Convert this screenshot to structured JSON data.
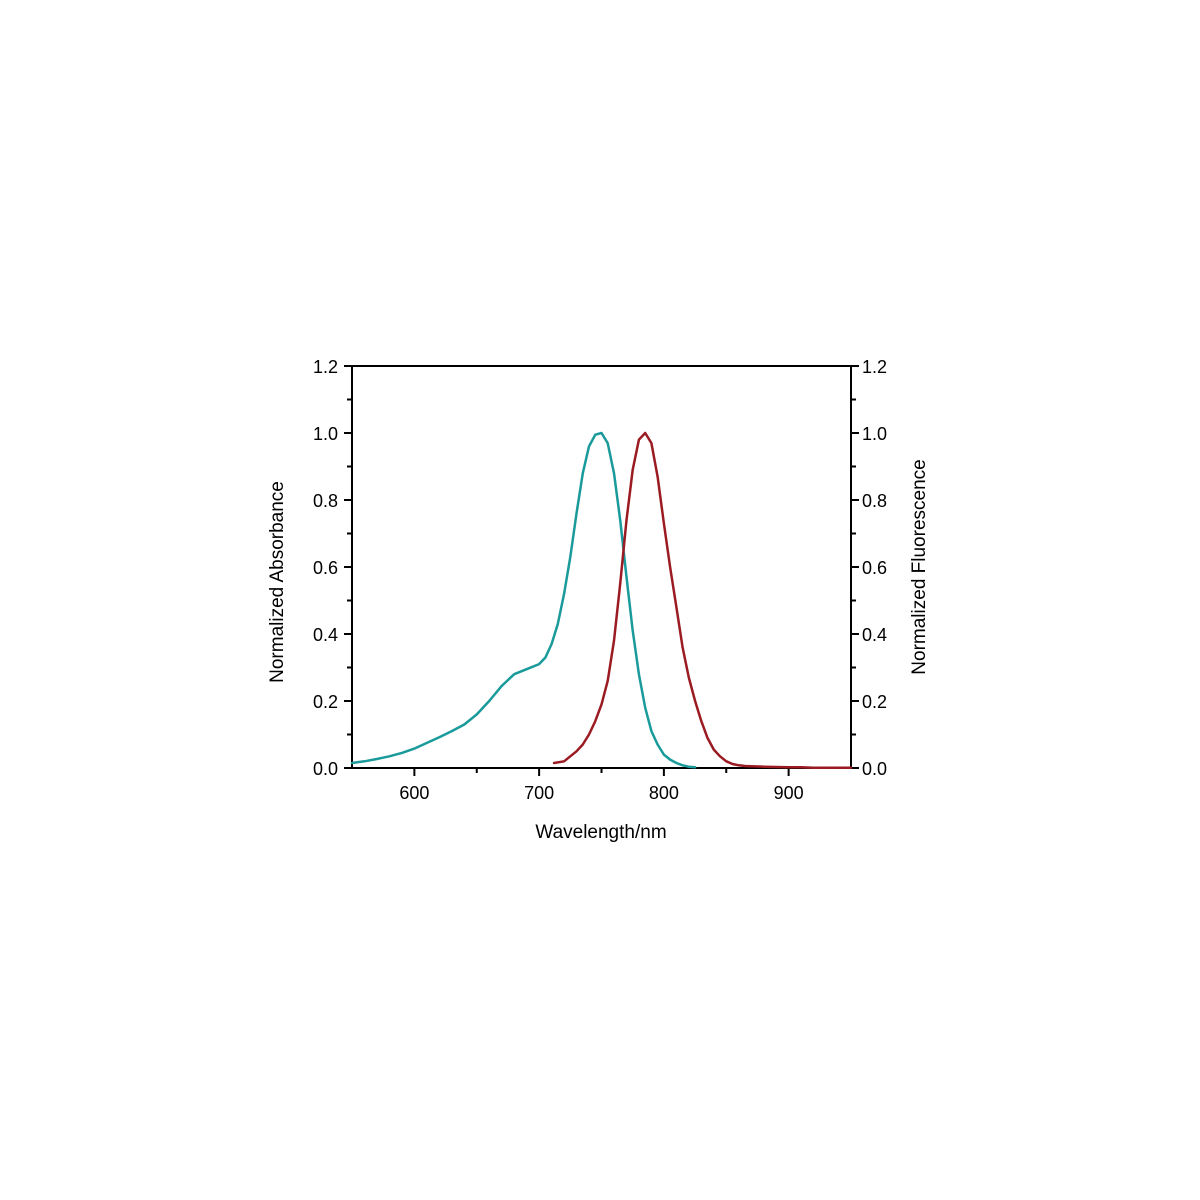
{
  "chart_data": {
    "type": "line",
    "xlabel": "Wavelength/nm",
    "ylabel_left": "Normalized Absorbance",
    "ylabel_right": "Normalized Fluorescence",
    "xlim": [
      550,
      950
    ],
    "ylim": [
      0,
      1.2
    ],
    "x_ticks": [
      600,
      700,
      800,
      900
    ],
    "y_ticks": [
      0.0,
      0.2,
      0.4,
      0.6,
      0.8,
      1.0,
      1.2
    ],
    "x_tick_labels": [
      "600",
      "700",
      "800",
      "900"
    ],
    "y_tick_labels": [
      "0.0",
      "0.2",
      "0.4",
      "0.6",
      "0.8",
      "1.0",
      "1.2"
    ],
    "grid": false,
    "legend": "none",
    "series": [
      {
        "color": "#1a9a9a",
        "axis": "left",
        "x": [
          550,
          560,
          570,
          580,
          590,
          600,
          610,
          620,
          630,
          640,
          650,
          660,
          670,
          680,
          690,
          700,
          705,
          710,
          715,
          720,
          725,
          730,
          735,
          740,
          745,
          750,
          755,
          760,
          765,
          770,
          775,
          780,
          785,
          790,
          795,
          800,
          805,
          810,
          815,
          820,
          825
        ],
        "y": [
          0.015,
          0.02,
          0.027,
          0.035,
          0.045,
          0.058,
          0.075,
          0.092,
          0.11,
          0.13,
          0.16,
          0.2,
          0.245,
          0.28,
          0.295,
          0.31,
          0.33,
          0.37,
          0.43,
          0.52,
          0.63,
          0.76,
          0.88,
          0.96,
          0.995,
          1.0,
          0.97,
          0.88,
          0.74,
          0.57,
          0.41,
          0.28,
          0.18,
          0.11,
          0.07,
          0.04,
          0.025,
          0.015,
          0.008,
          0.004,
          0.002
        ]
      },
      {
        "color": "#9b1b22",
        "axis": "right",
        "x": [
          712,
          720,
          725,
          730,
          735,
          740,
          745,
          750,
          755,
          760,
          765,
          770,
          775,
          780,
          785,
          790,
          795,
          800,
          805,
          810,
          815,
          820,
          825,
          830,
          835,
          840,
          845,
          850,
          855,
          860,
          865,
          870,
          880,
          890,
          900,
          910,
          920,
          930,
          940,
          950
        ],
        "y": [
          0.015,
          0.02,
          0.035,
          0.05,
          0.07,
          0.1,
          0.14,
          0.19,
          0.26,
          0.38,
          0.55,
          0.74,
          0.89,
          0.98,
          1.0,
          0.97,
          0.87,
          0.73,
          0.6,
          0.48,
          0.36,
          0.27,
          0.2,
          0.14,
          0.09,
          0.055,
          0.035,
          0.02,
          0.012,
          0.008,
          0.006,
          0.005,
          0.004,
          0.003,
          0.002,
          0.002,
          0.001,
          0.001,
          0.001,
          0.001
        ]
      }
    ]
  }
}
